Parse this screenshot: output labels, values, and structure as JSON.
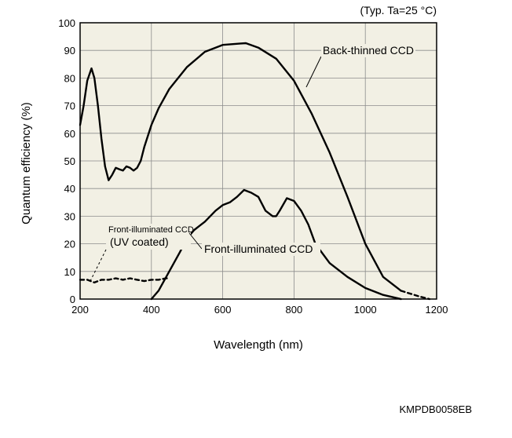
{
  "chart_data": {
    "type": "line",
    "condition_note": "(Typ. Ta=25 °C)",
    "xlabel": "Wavelength (nm)",
    "ylabel": "Quantum efficiency (%)",
    "xlim": [
      200,
      1200
    ],
    "ylim": [
      0,
      100
    ],
    "x_ticks": [
      "200",
      "400",
      "600",
      "800",
      "1000",
      "1200"
    ],
    "y_ticks": [
      "0",
      "10",
      "20",
      "30",
      "40",
      "50",
      "60",
      "70",
      "80",
      "90",
      "100"
    ],
    "grid": true,
    "background": "#f2f0e4",
    "series": [
      {
        "name": "Back-thinned CCD",
        "style": "solid",
        "x": [
          200,
          210,
          220,
          232,
          240,
          250,
          260,
          270,
          280,
          290,
          300,
          310,
          320,
          330,
          340,
          350,
          360,
          370,
          380,
          400,
          420,
          450,
          500,
          550,
          600,
          650,
          665,
          700,
          750,
          800,
          850,
          900,
          950,
          1000,
          1050,
          1100
        ],
        "y": [
          63,
          70,
          79,
          83.5,
          80,
          70,
          58,
          48,
          43,
          45,
          47.5,
          47,
          46.5,
          48,
          47.5,
          46.5,
          47.5,
          50,
          55,
          63,
          69,
          76,
          84,
          89.5,
          92,
          92.5,
          92.6,
          91,
          87,
          79,
          67,
          53,
          37,
          20,
          8,
          3
        ]
      },
      {
        "name": "Back-thinned CCD",
        "style": "dashed",
        "x": [
          1100,
          1150,
          1180
        ],
        "y": [
          3,
          1,
          0
        ]
      },
      {
        "name": "Front-illuminated CCD",
        "style": "solid",
        "x": [
          400,
          420,
          450,
          480,
          500,
          520,
          550,
          580,
          600,
          620,
          640,
          660,
          680,
          700,
          720,
          740,
          750,
          760,
          780,
          800,
          820,
          840,
          860,
          900,
          950,
          1000,
          1050,
          1100
        ],
        "y": [
          0,
          3,
          10,
          17,
          22,
          25,
          28,
          32,
          34,
          35,
          37,
          39.5,
          38.5,
          37,
          32,
          30,
          30,
          32,
          36.5,
          35.5,
          32,
          27,
          20,
          13,
          8,
          4,
          1.5,
          0
        ]
      },
      {
        "name": "Front-illuminated CCD (UV coated)",
        "style": "dashed",
        "x": [
          200,
          220,
          240,
          260,
          280,
          300,
          320,
          340,
          360,
          380,
          400,
          420,
          440,
          450
        ],
        "y": [
          7,
          7,
          6,
          7,
          7,
          7.5,
          7,
          7.5,
          7,
          6.5,
          7,
          7,
          7.5,
          7.5
        ]
      }
    ],
    "annotations": [
      {
        "text": "Back-thinned CCD"
      },
      {
        "line1": "Front-illuminated CCD",
        "line2": "(UV coated)"
      },
      {
        "text": "Front-illuminated CCD"
      }
    ]
  },
  "footer_code": "KMPDB0058EB"
}
